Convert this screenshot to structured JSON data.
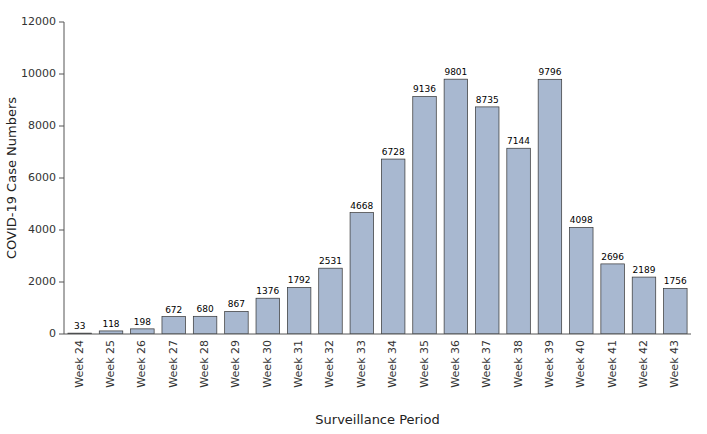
{
  "chart_data": {
    "type": "bar",
    "categories": [
      "Week 24",
      "Week 25",
      "Week 26",
      "Week 27",
      "Week 28",
      "Week 29",
      "Week 30",
      "Week 31",
      "Week 32",
      "Week 33",
      "Week 34",
      "Week 35",
      "Week 36",
      "Week 37",
      "Week 38",
      "Week 39",
      "Week 40",
      "Week 41",
      "Week 42",
      "Week 43"
    ],
    "values": [
      33,
      118,
      198,
      672,
      680,
      867,
      1376,
      1792,
      2531,
      4668,
      6728,
      9136,
      9801,
      8735,
      7144,
      9796,
      4098,
      2696,
      2189,
      1756
    ],
    "color": "#a8b8d0",
    "xlabel": "Surveillance Period",
    "ylabel": "COVID-19 Case Numbers",
    "ylim": [
      0,
      12000
    ],
    "yticks": [
      0,
      2000,
      4000,
      6000,
      8000,
      10000,
      12000
    ],
    "data_labels": true,
    "grid": false
  }
}
